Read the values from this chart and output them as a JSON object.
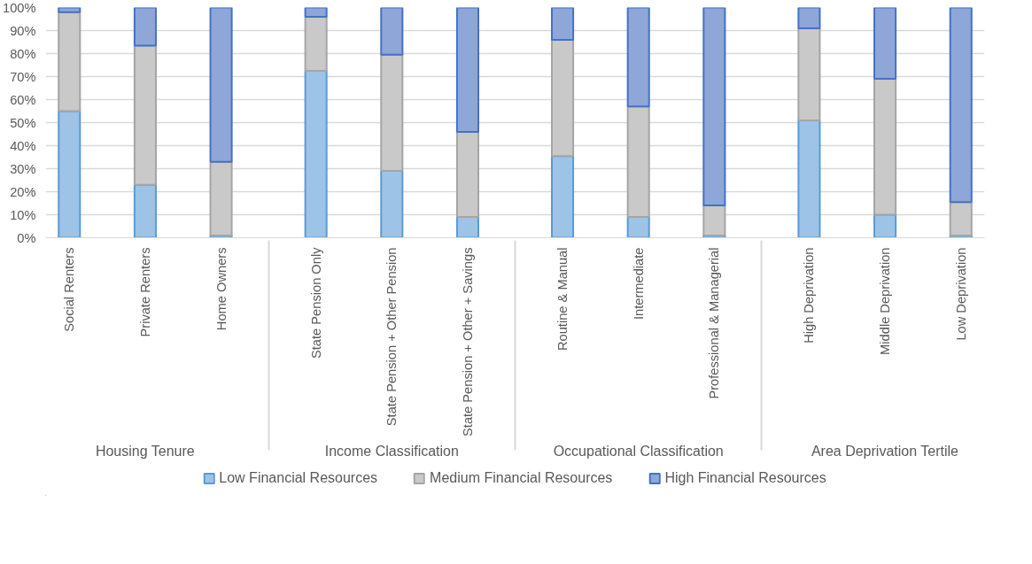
{
  "chart_data": {
    "type": "bar",
    "stacked": true,
    "categories": [
      "Social Renters",
      "Private Renters",
      "Home Owners",
      "State Pension Only",
      "State Pension + Other Pension",
      "State Pension + Other + Savings",
      "Routine & Manual",
      "Intermediate",
      "Professional & Managerial",
      "High Deprivation",
      "Middle Deprivation",
      "Low Deprivation"
    ],
    "annotations": [
      "Housing Tenure",
      "Income Classification",
      "Occupational Classification",
      "Area Deprivation Tertile"
    ],
    "series": [
      {
        "name": "Low Financial Resources",
        "color": "#9dc3e6",
        "values": [
          55,
          23,
          1,
          72.5,
          29,
          9,
          35.5,
          9,
          1,
          51,
          10,
          1
        ]
      },
      {
        "name": "Medium Financial Resources",
        "color": "#c9c9c9",
        "values": [
          43,
          60.5,
          32,
          23.5,
          50.5,
          37,
          50.5,
          48,
          13,
          40,
          59,
          14.5
        ]
      },
      {
        "name": "High Financial Resources",
        "color": "#8fa6d9",
        "values": [
          2,
          16.5,
          67,
          4,
          20.5,
          54,
          14,
          43,
          86,
          9,
          31,
          84.5
        ]
      }
    ],
    "ylim": [
      0,
      100
    ],
    "yticks": [
      {
        "value": 0,
        "label": "0%"
      },
      {
        "value": 10,
        "label": "10%"
      },
      {
        "value": 20,
        "label": "20%"
      },
      {
        "value": 30,
        "label": "30%"
      },
      {
        "value": 40,
        "label": "40%"
      },
      {
        "value": 50,
        "label": "50%"
      },
      {
        "value": 60,
        "label": "60%"
      },
      {
        "value": 70,
        "label": "70%"
      },
      {
        "value": 80,
        "label": "80%"
      },
      {
        "value": 90,
        "label": "90%"
      },
      {
        "value": 100,
        "label": "100%"
      }
    ],
    "grid": "y",
    "legend": "bottom"
  }
}
